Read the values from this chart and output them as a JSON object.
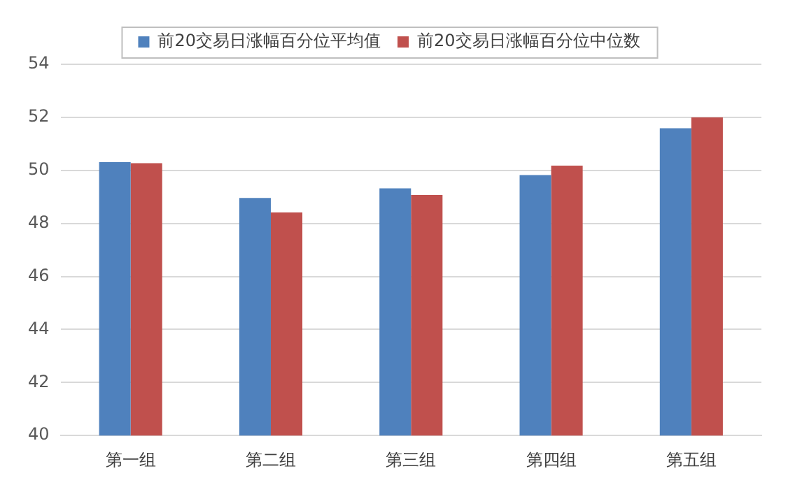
{
  "chart_data": {
    "type": "bar",
    "categories": [
      "第一组",
      "第二组",
      "第三组",
      "第四组",
      "第五组"
    ],
    "series": [
      {
        "name": "前20交易日涨幅百分位平均值",
        "color": "#4f81bd",
        "values": [
          50.31,
          48.96,
          49.32,
          49.82,
          51.59
        ]
      },
      {
        "name": "前20交易日涨幅百分位中位数",
        "color": "#c0504d",
        "values": [
          50.27,
          48.41,
          49.07,
          50.18,
          52.0
        ]
      }
    ],
    "ylim": [
      40,
      54
    ],
    "yticks": [
      40,
      42,
      44,
      46,
      48,
      50,
      52,
      54
    ],
    "grid": "y",
    "legend": "top"
  }
}
